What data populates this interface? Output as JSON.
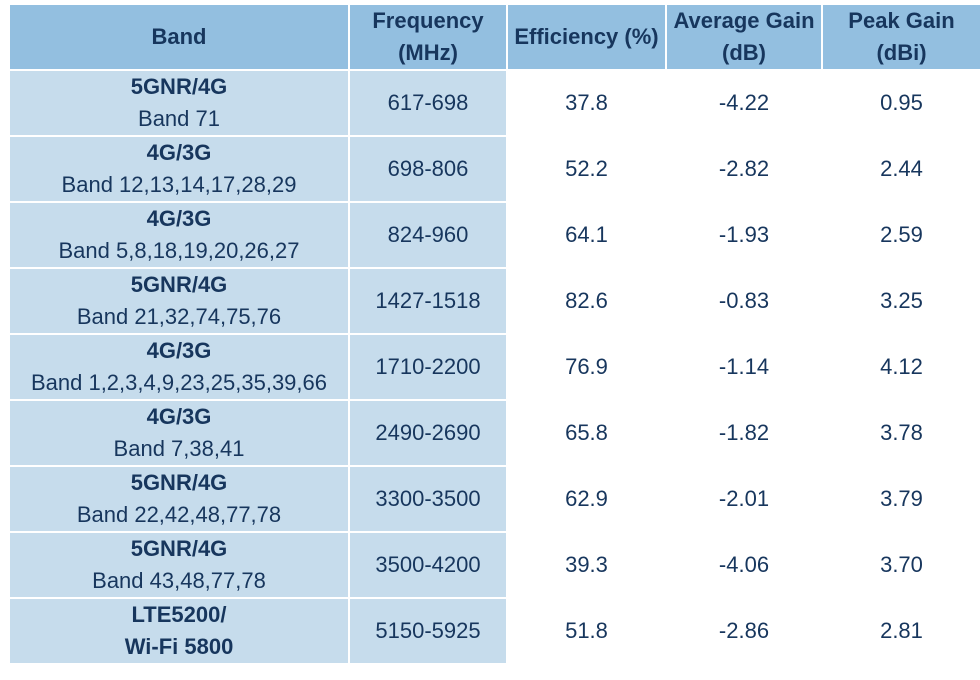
{
  "table": {
    "headers": [
      {
        "line1": "Band",
        "line2": ""
      },
      {
        "line1": "Frequency",
        "line2": "(MHz)"
      },
      {
        "line1": "Efficiency (%)",
        "line2": ""
      },
      {
        "line1": "Average Gain",
        "line2": "(dB)"
      },
      {
        "line1": "Peak Gain",
        "line2": "(dBi)"
      }
    ],
    "rows": [
      {
        "band_name": "5GNR/4G",
        "band_detail": "Band 71",
        "frequency": "617-698",
        "efficiency": "37.8",
        "avg_gain": "-4.22",
        "peak_gain": "0.95"
      },
      {
        "band_name": "4G/3G",
        "band_detail": "Band 12,13,14,17,28,29",
        "frequency": "698-806",
        "efficiency": "52.2",
        "avg_gain": "-2.82",
        "peak_gain": "2.44"
      },
      {
        "band_name": "4G/3G",
        "band_detail": "Band 5,8,18,19,20,26,27",
        "frequency": "824-960",
        "efficiency": "64.1",
        "avg_gain": "-1.93",
        "peak_gain": "2.59"
      },
      {
        "band_name": "5GNR/4G",
        "band_detail": "Band 21,32,74,75,76",
        "frequency": "1427-1518",
        "efficiency": "82.6",
        "avg_gain": "-0.83",
        "peak_gain": "3.25"
      },
      {
        "band_name": "4G/3G",
        "band_detail": "Band 1,2,3,4,9,23,25,35,39,66",
        "frequency": "1710-2200",
        "efficiency": "76.9",
        "avg_gain": "-1.14",
        "peak_gain": "4.12"
      },
      {
        "band_name": "4G/3G",
        "band_detail": "Band 7,38,41",
        "frequency": "2490-2690",
        "efficiency": "65.8",
        "avg_gain": "-1.82",
        "peak_gain": "3.78"
      },
      {
        "band_name": "5GNR/4G",
        "band_detail": "Band 22,42,48,77,78",
        "frequency": "3300-3500",
        "efficiency": "62.9",
        "avg_gain": "-2.01",
        "peak_gain": "3.79"
      },
      {
        "band_name": "5GNR/4G",
        "band_detail": "Band 43,48,77,78",
        "frequency": "3500-4200",
        "efficiency": "39.3",
        "avg_gain": "-4.06",
        "peak_gain": "3.70"
      },
      {
        "band_name": "LTE5200/",
        "band_detail": "Wi-Fi 5800",
        "band_detail_bold": true,
        "frequency": "5150-5925",
        "efficiency": "51.8",
        "avg_gain": "-2.86",
        "peak_gain": "2.81"
      }
    ]
  },
  "colors": {
    "header_bg": "#93bfe0",
    "shaded_bg": "#c6dcec",
    "text": "#17365d"
  }
}
